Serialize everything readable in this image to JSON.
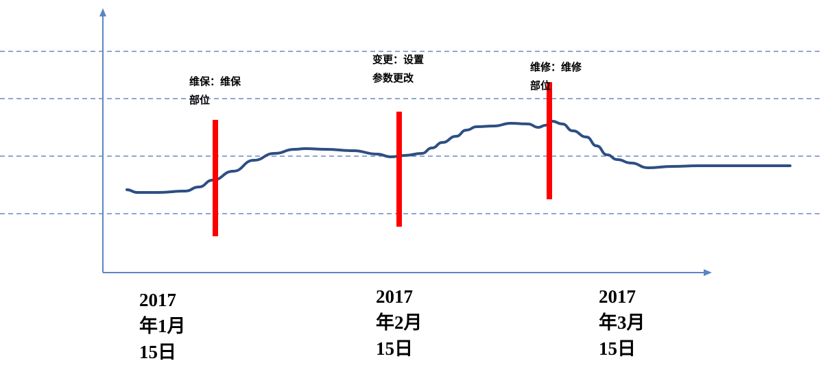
{
  "chart_data": {
    "type": "line",
    "title": "",
    "xlabel": "",
    "ylabel": "",
    "grid": true,
    "x_tick_labels": [
      {
        "lines": [
          "2017",
          "年1月",
          "15日"
        ]
      },
      {
        "lines": [
          "2017",
          "年2月",
          "15日"
        ]
      },
      {
        "lines": [
          "2017",
          "年3月",
          "15日"
        ]
      }
    ],
    "events": [
      {
        "lines": [
          "维保：维保",
          "部位"
        ]
      },
      {
        "lines": [
          "变更：设置",
          "参数更改"
        ]
      },
      {
        "lines": [
          "维修：维修",
          "部位"
        ]
      }
    ],
    "series": [
      {
        "color": "#2e4f83",
        "points": [
          [
            185,
            277
          ],
          [
            200,
            281
          ],
          [
            230,
            281
          ],
          [
            270,
            279
          ],
          [
            290,
            273
          ],
          [
            310,
            263
          ],
          [
            340,
            250
          ],
          [
            370,
            234
          ],
          [
            400,
            224
          ],
          [
            430,
            218
          ],
          [
            445,
            217
          ],
          [
            475,
            218
          ],
          [
            515,
            220
          ],
          [
            550,
            225
          ],
          [
            570,
            229
          ],
          [
            590,
            227
          ],
          [
            615,
            224
          ],
          [
            630,
            216
          ],
          [
            645,
            208
          ],
          [
            665,
            199
          ],
          [
            680,
            190
          ],
          [
            695,
            185
          ],
          [
            720,
            184
          ],
          [
            745,
            180
          ],
          [
            770,
            181
          ],
          [
            785,
            186
          ],
          [
            795,
            183
          ],
          [
            805,
            177
          ],
          [
            820,
            181
          ],
          [
            835,
            191
          ],
          [
            855,
            200
          ],
          [
            870,
            213
          ],
          [
            885,
            226
          ],
          [
            900,
            233
          ],
          [
            920,
            238
          ],
          [
            945,
            245
          ],
          [
            980,
            243
          ],
          [
            1020,
            242
          ],
          [
            1090,
            242
          ],
          [
            1152,
            242
          ]
        ]
      }
    ],
    "colors": {
      "line": "#2e4f83",
      "marker": "#ff0000",
      "axis": "#5b84c4",
      "grid": "#4a72b4"
    }
  }
}
